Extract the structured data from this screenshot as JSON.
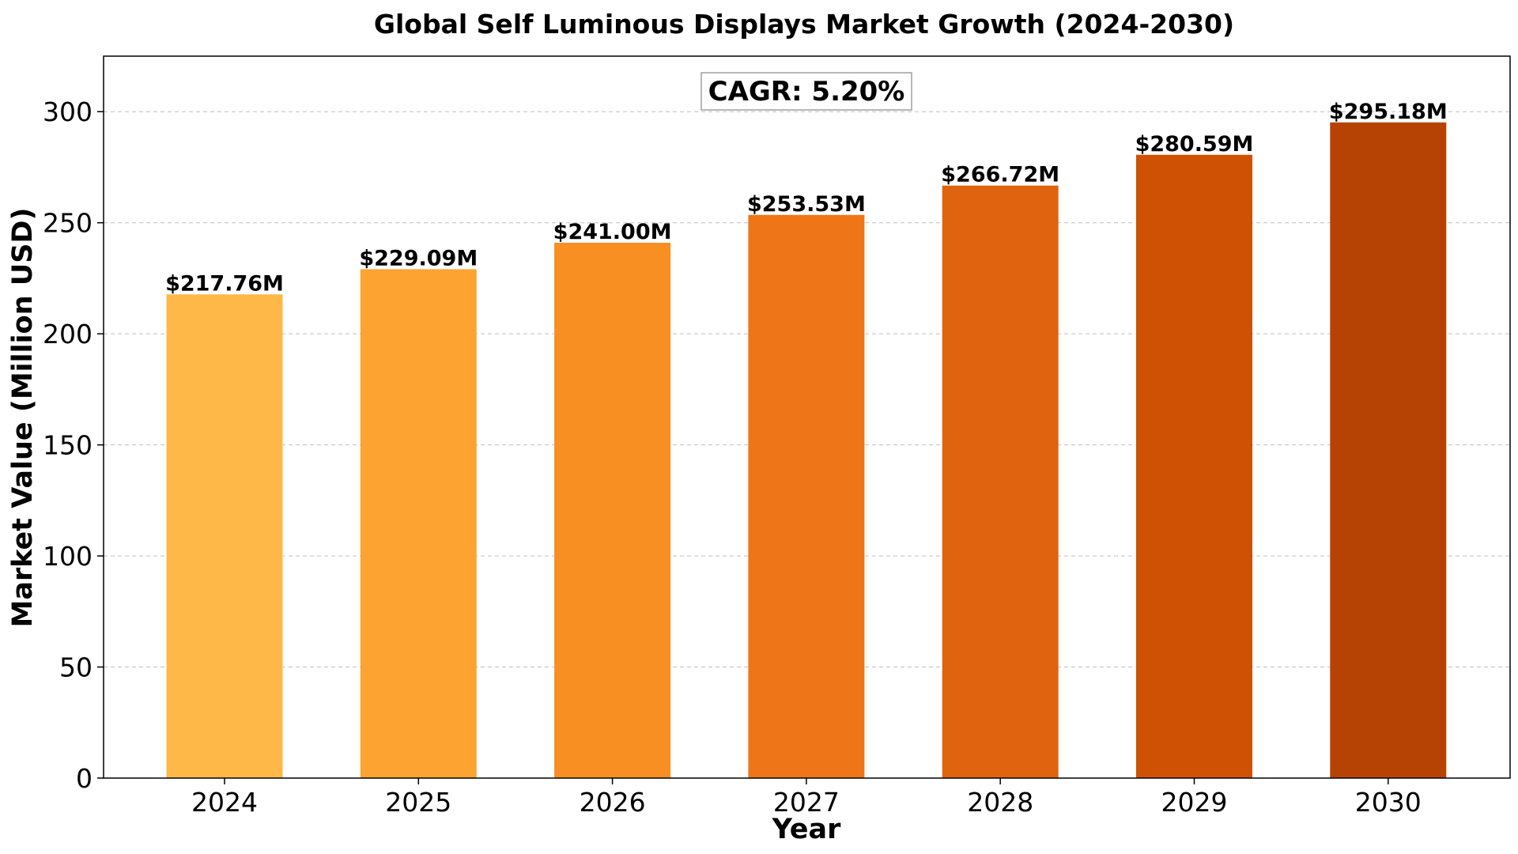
{
  "chart_data": {
    "type": "bar",
    "title": "Global Self Luminous Displays Market Growth (2024-2030)",
    "xlabel": "Year",
    "ylabel": "Market Value (Million USD)",
    "categories": [
      "2024",
      "2025",
      "2026",
      "2027",
      "2028",
      "2029",
      "2030"
    ],
    "values": [
      217.76,
      229.09,
      241.0,
      253.53,
      266.72,
      280.59,
      295.18
    ],
    "data_labels": [
      "$217.76M",
      "$229.09M",
      "$241.00M",
      "$253.53M",
      "$266.72M",
      "$280.59M",
      "$295.18M"
    ],
    "bar_colors": [
      "#fdb847",
      "#fca332",
      "#f78f22",
      "#ee7619",
      "#e06410",
      "#cf5103",
      "#b64303"
    ],
    "ylim": [
      0,
      325
    ],
    "yticks": [
      0,
      50,
      100,
      150,
      200,
      250,
      300
    ],
    "grid": "horizontal dashed",
    "annotation": "CAGR: 5.20%"
  }
}
